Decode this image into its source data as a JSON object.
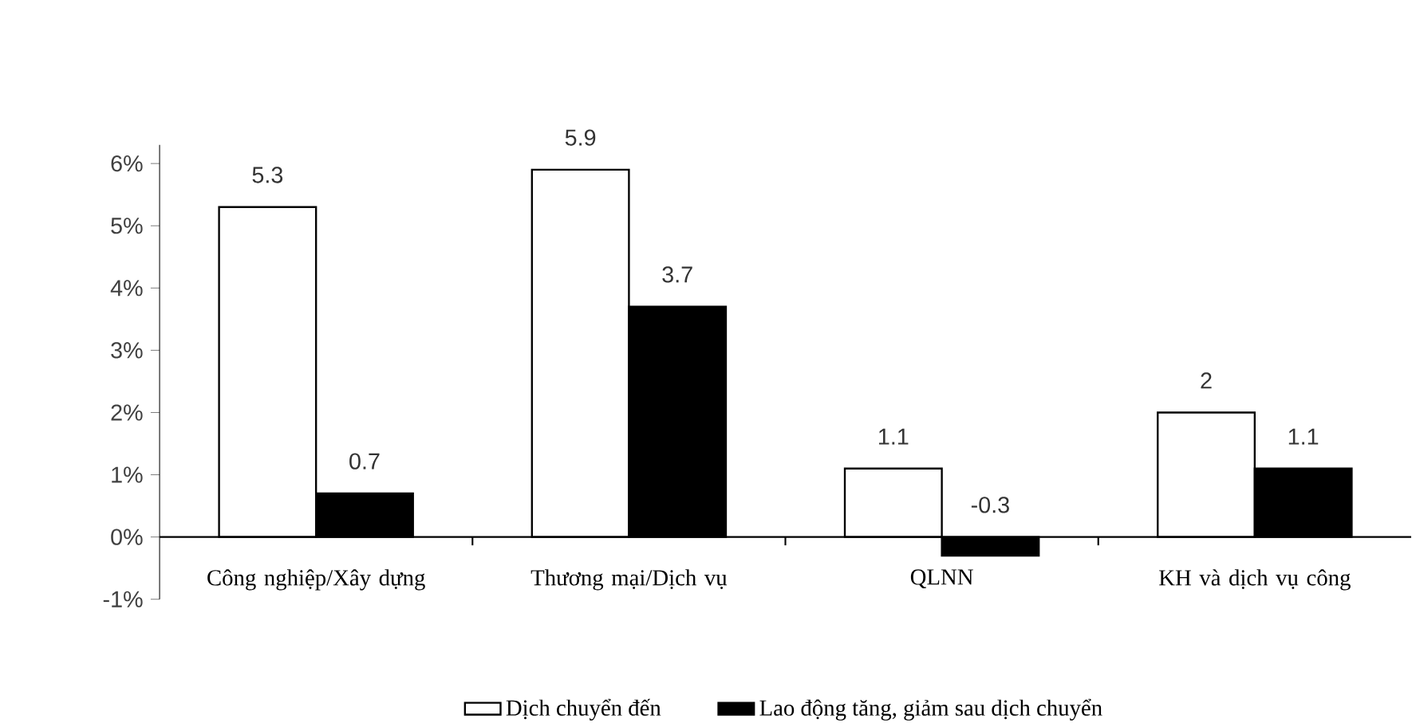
{
  "chart_data": {
    "type": "bar",
    "categories": [
      "Công nghiệp/Xây dựng",
      "Thương mại/Dịch vụ",
      "QLNN",
      "KH và dịch vụ công"
    ],
    "series": [
      {
        "name": "Dịch chuyển đến",
        "color": "#ffffff",
        "values": [
          5.3,
          5.9,
          1.1,
          2
        ],
        "value_labels": [
          "5.3",
          "5.9",
          "1.1",
          "2"
        ]
      },
      {
        "name": "Lao động tăng, giảm sau dịch chuyển",
        "color": "#000000",
        "values": [
          0.7,
          3.7,
          -0.3,
          1.1
        ],
        "value_labels": [
          "0.7",
          "3.7",
          "-0.3",
          "1.1"
        ]
      }
    ],
    "ylim": [
      -1,
      6.3
    ],
    "yticks": [
      {
        "value": -1,
        "label": "-1%"
      },
      {
        "value": 0,
        "label": "0%"
      },
      {
        "value": 1,
        "label": "1%"
      },
      {
        "value": 2,
        "label": "2%"
      },
      {
        "value": 3,
        "label": "3%"
      },
      {
        "value": 4,
        "label": "4%"
      },
      {
        "value": 5,
        "label": "5%"
      },
      {
        "value": 6,
        "label": "6%"
      }
    ],
    "legend": "bottom",
    "grid": false
  }
}
